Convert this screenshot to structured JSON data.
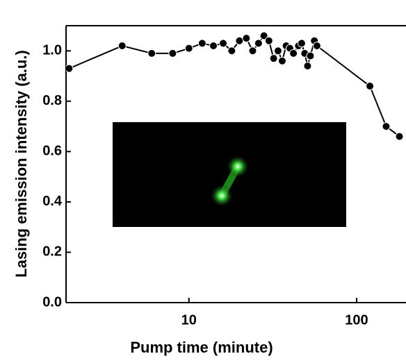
{
  "chart_data": {
    "type": "line",
    "x_label": "Pump time (minute)",
    "y_label": "Lasing emission intensity (a.u.)",
    "x": [
      1.93,
      4,
      6,
      8,
      10,
      12,
      14,
      16,
      18,
      20,
      22,
      24,
      26,
      28,
      30,
      32,
      34,
      36,
      38,
      40,
      42,
      45,
      47,
      49,
      51,
      53,
      56,
      58,
      120,
      150,
      180
    ],
    "series": [
      {
        "color": "#000000",
        "values": [
          0.93,
          1.02,
          0.99,
          0.99,
          1.01,
          1.03,
          1.02,
          1.03,
          1.0,
          1.04,
          1.05,
          1.0,
          1.03,
          1.06,
          1.04,
          0.97,
          1.0,
          0.96,
          1.02,
          1.01,
          0.99,
          1.02,
          1.03,
          0.99,
          0.94,
          0.98,
          1.04,
          1.02,
          0.86,
          0.7,
          0.66
        ]
      }
    ],
    "xlim": [
      1.85,
      197
    ],
    "xscale": "log",
    "xticks": [
      10,
      100
    ],
    "ylim": [
      0,
      1.1
    ],
    "yticks": [
      {
        "value": 0,
        "label": "0.0"
      },
      0.2,
      0.4,
      0.6,
      0.8,
      {
        "value": 1,
        "label": "1.0"
      }
    ]
  }
}
